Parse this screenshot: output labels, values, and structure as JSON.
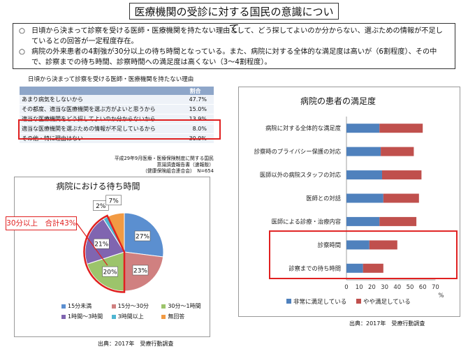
{
  "page_title": "医療機関の受診に対する国民の意識について",
  "summary": {
    "bullet": "○",
    "items": [
      "日頃から決まって診察を受ける医師・医療機関を持たない理由として、どう探してよいのか分からない、選ぶための情報が不足しているとの回答が一定程度存在。",
      "病院の外来患者の4割強が30分以上の待ち時間となっている。また、病院に対する全体的な満足度は高いが（6割程度）、その中で、診察までの待ち時間、診察時間への満足度は高くない（3～4割程度）。"
    ]
  },
  "chart_data": [
    {
      "type": "table",
      "title": "日頃から決まって診察を受ける医師・医療機関を持たない理由",
      "columns": [
        "",
        "割合"
      ],
      "rows": [
        {
          "label": "あまり病気をしないから",
          "value": "47.7%"
        },
        {
          "label": "その都度、適当な医療機関を選ぶ方がよいと思うから",
          "value": "15.0%"
        },
        {
          "label": "適当な医療機関をどう探してよいのか分からないから",
          "value": "13.9%"
        },
        {
          "label": "適当な医療機関を選ぶための情報が不足しているから",
          "value": "8.0%"
        },
        {
          "label": "その他・特に理由はない",
          "value": "30.9%"
        }
      ],
      "highlighted_rows": [
        2,
        3
      ],
      "source": [
        "平成29年9月医療・医療保険制度に関する国民意識調査報告書（速報版）",
        "（健康保険組合連合会）　N=654"
      ]
    },
    {
      "type": "pie",
      "title": "病院における待ち時間",
      "slices": [
        {
          "label": "15分未満",
          "value": 27,
          "color": "#5b8fd0"
        },
        {
          "label": "15分～30分",
          "value": 23,
          "color": "#d08080"
        },
        {
          "label": "30分～1時間",
          "value": 20,
          "color": "#9cc46b"
        },
        {
          "label": "1時間～3時間",
          "value": 21,
          "color": "#8065b0"
        },
        {
          "label": "3時間以上",
          "value": 2,
          "color": "#4fb6d2"
        },
        {
          "label": "無回答",
          "value": 7,
          "color": "#f29a43"
        }
      ],
      "callout": "30分以上　合計43%",
      "legend_position": "bottom",
      "source": "出典：2017年　受療行動調査"
    },
    {
      "type": "bar",
      "stacked": true,
      "orientation": "horizontal",
      "title": "病院の患者の満足度",
      "categories": [
        "病院に対する全体的な満足度",
        "診察時のプライバシー保護の対応",
        "医師以外の病院スタッフの対応",
        "医師との対話",
        "医師による診療・治療内容",
        "診察時間",
        "診察までの待ち時間"
      ],
      "series": [
        {
          "name": "非常に満足している",
          "values": [
            26,
            27,
            28,
            29,
            26,
            18,
            13
          ],
          "color": "#4f81bd"
        },
        {
          "name": "やや満足している",
          "values": [
            34,
            26,
            31,
            28,
            29,
            22,
            16
          ],
          "color": "#c0504d"
        }
      ],
      "xlim": [
        0,
        70
      ],
      "xticks": [
        "0",
        "10",
        "20",
        "30",
        "40",
        "50",
        "60",
        "70"
      ],
      "unit": "%",
      "highlighted_categories": [
        5,
        6
      ],
      "legend_position": "bottom",
      "source": "出典：2017年　受療行動調査"
    }
  ]
}
